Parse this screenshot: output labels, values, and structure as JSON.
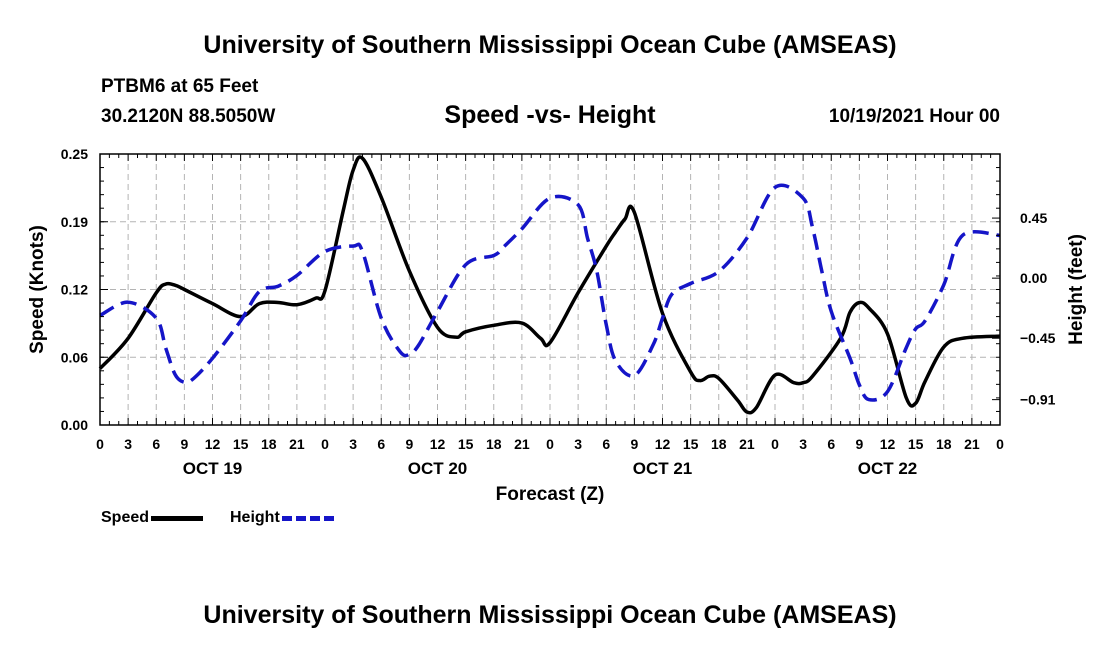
{
  "header": {
    "title": "University of Southern Mississippi Ocean Cube (AMSEAS)",
    "station": "PTBM6 at 65 Feet",
    "coords": "30.2120N  88.5050W",
    "subtitle": "Speed -vs- Height",
    "datetime": "10/19/2021 Hour 00"
  },
  "footer": {
    "title": "University of Southern Mississippi Ocean Cube (AMSEAS)"
  },
  "legend": {
    "speed_label": "Speed",
    "height_label": "Height"
  },
  "colors": {
    "speed": "#000000",
    "height": "#1515c8",
    "grid": "#b4b4b4"
  },
  "chart_data": {
    "type": "line",
    "title": "Speed -vs- Height",
    "xlabel": "Forecast (Z)",
    "ylabel": "Speed (Knots)",
    "y2label": "Height (feet)",
    "x_range_hours": [
      0,
      96
    ],
    "x_tick_labels": [
      "0",
      "3",
      "6",
      "9",
      "12",
      "15",
      "18",
      "21",
      "0",
      "3",
      "6",
      "9",
      "12",
      "15",
      "18",
      "21",
      "0",
      "3",
      "6",
      "9",
      "12",
      "15",
      "18",
      "21",
      "0",
      "3",
      "6",
      "9",
      "12",
      "15",
      "18",
      "21",
      "0"
    ],
    "day_labels": [
      {
        "label": "OCT 19",
        "hour": 12
      },
      {
        "label": "OCT 20",
        "hour": 36
      },
      {
        "label": "OCT 21",
        "hour": 60
      },
      {
        "label": "OCT 22",
        "hour": 84
      }
    ],
    "ylim": [
      0,
      0.25
    ],
    "y_ticks": [
      "0.00",
      "0.06",
      "0.12",
      "0.19",
      "0.25"
    ],
    "y2lim": [
      -1.1,
      0.93
    ],
    "y2_ticks": [
      {
        "label": "0.45",
        "value": 0.45
      },
      {
        "label": "0.00",
        "value": 0.0
      },
      {
        "label": "−0.45",
        "value": -0.45
      },
      {
        "label": "−0.91",
        "value": -0.91
      }
    ],
    "series": [
      {
        "name": "Speed",
        "axis": "left",
        "style": "solid",
        "x": [
          0,
          3,
          6,
          7,
          8,
          9,
          12,
          15,
          17,
          19,
          21,
          23,
          24,
          26,
          27,
          28,
          30,
          33,
          36,
          38,
          39,
          42,
          45,
          47,
          48,
          51,
          54,
          55,
          56,
          57,
          60,
          63,
          64,
          65,
          66,
          68,
          69,
          70,
          72,
          74,
          75,
          76,
          79,
          80,
          81,
          82,
          84,
          86,
          87,
          88,
          90,
          92,
          96
        ],
        "values": [
          0.052,
          0.08,
          0.122,
          0.13,
          0.129,
          0.125,
          0.112,
          0.1,
          0.112,
          0.113,
          0.111,
          0.117,
          0.124,
          0.2,
          0.235,
          0.246,
          0.21,
          0.142,
          0.09,
          0.081,
          0.086,
          0.092,
          0.094,
          0.08,
          0.076,
          0.122,
          0.165,
          0.178,
          0.19,
          0.196,
          0.103,
          0.049,
          0.041,
          0.045,
          0.043,
          0.023,
          0.012,
          0.016,
          0.046,
          0.039,
          0.039,
          0.045,
          0.08,
          0.104,
          0.113,
          0.108,
          0.084,
          0.025,
          0.02,
          0.04,
          0.072,
          0.08,
          0.082
        ]
      },
      {
        "name": "Height",
        "axis": "right",
        "style": "dashed",
        "x": [
          0,
          3,
          6,
          7,
          8,
          9,
          10,
          12,
          15,
          17,
          19,
          21,
          24,
          27,
          28,
          30,
          32,
          33,
          34,
          36,
          39,
          42,
          43,
          45,
          48,
          51,
          52,
          53,
          54,
          55,
          57,
          59,
          60,
          61,
          63,
          66,
          69,
          72,
          75,
          76,
          77,
          78,
          80,
          81,
          82,
          84,
          86,
          87,
          88,
          90,
          92,
          96
        ],
        "values": [
          -0.28,
          -0.18,
          -0.3,
          -0.52,
          -0.72,
          -0.78,
          -0.75,
          -0.6,
          -0.32,
          -0.1,
          -0.06,
          0.02,
          0.2,
          0.24,
          0.2,
          -0.3,
          -0.55,
          -0.57,
          -0.5,
          -0.25,
          0.1,
          0.17,
          0.23,
          0.37,
          0.6,
          0.55,
          0.3,
          0.05,
          -0.35,
          -0.62,
          -0.73,
          -0.5,
          -0.3,
          -0.12,
          -0.04,
          0.05,
          0.3,
          0.68,
          0.6,
          0.38,
          0.05,
          -0.25,
          -0.6,
          -0.8,
          -0.91,
          -0.85,
          -0.52,
          -0.38,
          -0.32,
          -0.05,
          0.32,
          0.32
        ]
      }
    ]
  }
}
